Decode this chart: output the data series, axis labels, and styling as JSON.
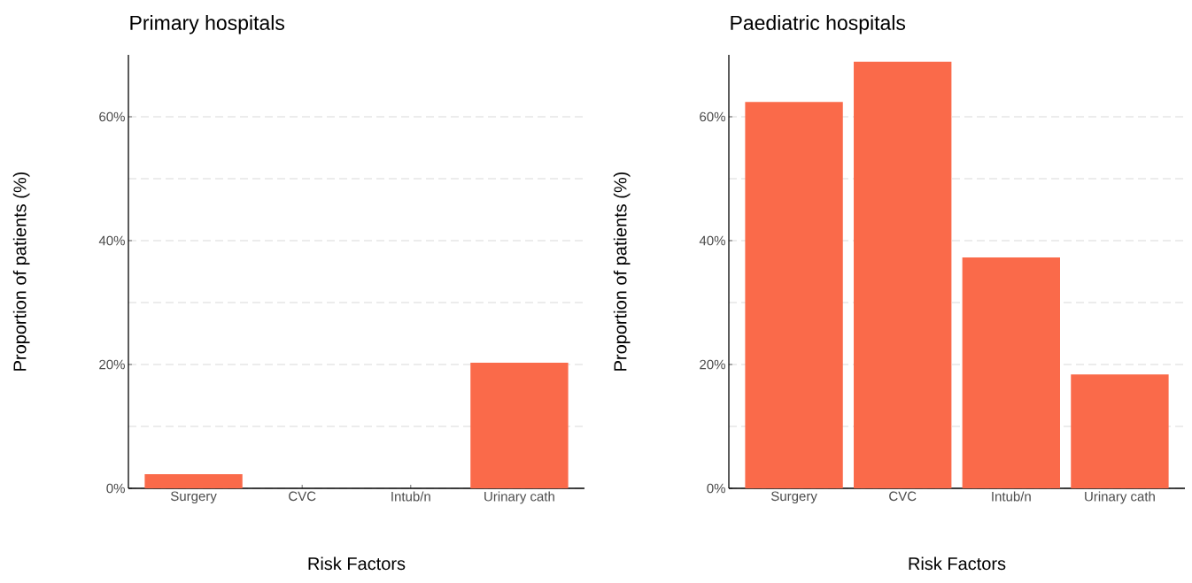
{
  "chart_data": [
    {
      "type": "bar",
      "title": "Primary hospitals",
      "xlabel": "Risk Factors",
      "ylabel": "Proportion of patients (%)",
      "categories": [
        "Surgery",
        "CVC",
        "Intub/n",
        "Urinary cath"
      ],
      "values": [
        2.3,
        0,
        0,
        20.3
      ],
      "color": "#fa6a4a",
      "ylim": [
        0,
        70
      ],
      "yticks": [
        {
          "value": 0,
          "label": "0%"
        },
        {
          "value": 10,
          "label": null
        },
        {
          "value": 20,
          "label": "20%"
        },
        {
          "value": 30,
          "label": null
        },
        {
          "value": 40,
          "label": "40%"
        },
        {
          "value": 50,
          "label": null
        },
        {
          "value": 60,
          "label": "60%"
        }
      ],
      "grid": "y"
    },
    {
      "type": "bar",
      "title": "Paediatric hospitals",
      "xlabel": "Risk Factors",
      "ylabel": "Proportion of patients (%)",
      "categories": [
        "Surgery",
        "CVC",
        "Intub/n",
        "Urinary cath"
      ],
      "values": [
        62.4,
        68.9,
        37.3,
        18.4
      ],
      "color": "#fa6a4a",
      "ylim": [
        0,
        70
      ],
      "yticks": [
        {
          "value": 0,
          "label": "0%"
        },
        {
          "value": 10,
          "label": null
        },
        {
          "value": 20,
          "label": "20%"
        },
        {
          "value": 30,
          "label": null
        },
        {
          "value": 40,
          "label": "40%"
        },
        {
          "value": 50,
          "label": null
        },
        {
          "value": 60,
          "label": "60%"
        }
      ],
      "grid": "y"
    }
  ]
}
